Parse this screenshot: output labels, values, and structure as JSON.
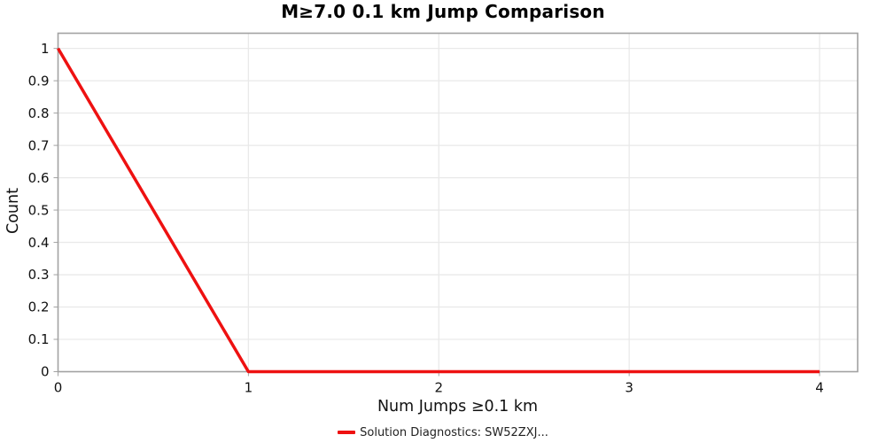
{
  "page": {
    "background": "#ffffff"
  },
  "chart_data": {
    "type": "line",
    "title": "M≥7.0 0.1 km Jump Comparison",
    "xlabel": "Num Jumps ≥0.1 km",
    "ylabel": "Count",
    "xlim": [
      0,
      4.2
    ],
    "ylim": [
      0,
      1.047
    ],
    "grid": true,
    "legend_position": "bottom-center",
    "x_ticks": [
      {
        "value": 0,
        "label": "0"
      },
      {
        "value": 1,
        "label": "1"
      },
      {
        "value": 2,
        "label": "2"
      },
      {
        "value": 3,
        "label": "3"
      },
      {
        "value": 4,
        "label": "4"
      }
    ],
    "y_ticks": [
      {
        "value": 0,
        "label": "0"
      },
      {
        "value": 0.1,
        "label": "0.1"
      },
      {
        "value": 0.2,
        "label": "0.2"
      },
      {
        "value": 0.3,
        "label": "0.3"
      },
      {
        "value": 0.4,
        "label": "0.4"
      },
      {
        "value": 0.5,
        "label": "0.5"
      },
      {
        "value": 0.6,
        "label": "0.6"
      },
      {
        "value": 0.7,
        "label": "0.7"
      },
      {
        "value": 0.8,
        "label": "0.8"
      },
      {
        "value": 0.9,
        "label": "0.9"
      },
      {
        "value": 1,
        "label": "1"
      }
    ],
    "series": [
      {
        "name": "Solution Diagnostics: SW52ZXJ...",
        "color": "#ee1111",
        "line_width": 3.5,
        "x": [
          0,
          1,
          2,
          3,
          4
        ],
        "y": [
          1,
          0,
          0,
          0,
          0
        ]
      }
    ],
    "colors": {
      "axis_line": "#a2a2a2",
      "gridline": "#e9e9e9",
      "tick_text": "#111111",
      "title_text": "#000000",
      "legend_text": "#222222"
    }
  }
}
